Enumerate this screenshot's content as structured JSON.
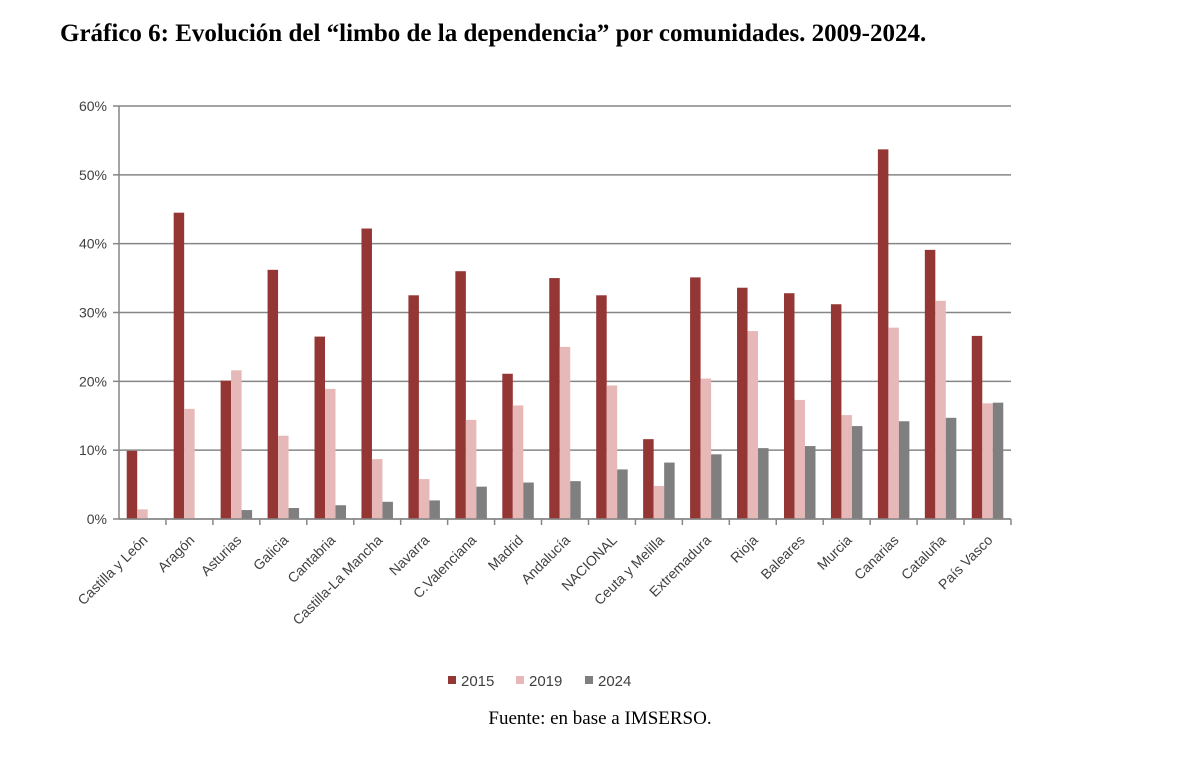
{
  "title": "Gráfico 6: Evolución del “limbo de la dependencia” por comunidades. 2009-2024.",
  "source": "Fuente: en base a IMSERSO.",
  "chart_data": {
    "type": "bar",
    "title": "Gráfico 6: Evolución del “limbo de la dependencia” por comunidades. 2009-2024.",
    "xlabel": "",
    "ylabel": "",
    "ylim": [
      0,
      60
    ],
    "yticks": [
      0,
      10,
      20,
      30,
      40,
      50,
      60
    ],
    "ytick_labels": [
      "0%",
      "10%",
      "20%",
      "30%",
      "40%",
      "50%",
      "60%"
    ],
    "grid": true,
    "legend_position": "bottom",
    "categories": [
      "Castilla y León",
      "Aragón",
      "Asturias",
      "Galicia",
      "Cantabria",
      "Castilla-La Mancha",
      "Navarra",
      "C.Valenciana",
      "Madrid",
      "Andalucía",
      "NACIONAL",
      "Ceuta y Melilla",
      "Extremadura",
      "Rioja",
      "Baleares",
      "Murcia",
      "Canarias",
      "Cataluña",
      "País Vasco"
    ],
    "series": [
      {
        "name": "2015",
        "color": "#943634",
        "values": [
          9.9,
          44.5,
          20.1,
          36.2,
          26.5,
          42.2,
          32.5,
          36.0,
          21.1,
          35.0,
          32.5,
          11.6,
          35.1,
          33.6,
          32.8,
          31.2,
          53.7,
          39.1,
          26.6
        ]
      },
      {
        "name": "2019",
        "color": "#e6b9b8",
        "values": [
          1.4,
          16.0,
          21.6,
          12.1,
          18.9,
          8.7,
          5.8,
          14.4,
          16.5,
          25.0,
          19.4,
          4.8,
          20.4,
          27.3,
          17.3,
          15.1,
          27.8,
          31.7,
          16.8
        ]
      },
      {
        "name": "2024",
        "color": "#7f7f7f",
        "values": [
          0,
          0,
          1.3,
          1.6,
          2.0,
          2.5,
          2.7,
          4.7,
          5.3,
          5.5,
          7.2,
          8.2,
          9.4,
          10.3,
          10.6,
          13.5,
          14.2,
          14.7,
          16.9
        ]
      }
    ]
  }
}
